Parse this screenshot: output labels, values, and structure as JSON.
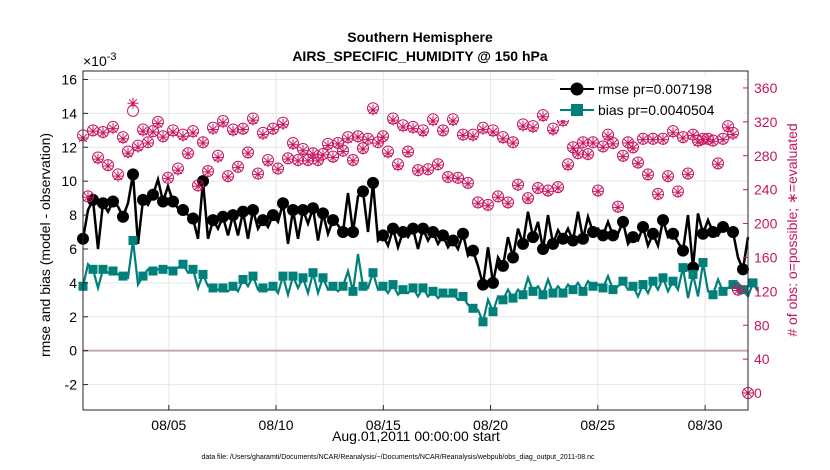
{
  "chart_data": {
    "type": "line",
    "title": [
      "Southern Hemisphere",
      "AIRS_SPECIFIC_HUMIDITY @ 150 hPa"
    ],
    "ylabel": "rmse and bias (model - observation)",
    "y2label": "# of obs: o=possible; ∗=evaluated",
    "xlabel": "Aug.01,2011 00:00:00 start",
    "y_exponent_label": "×10",
    "y_exponent_power": "-3",
    "footer": "data file: /Users/gharamti/Documents/NCAR/Reanalysis/~/Documents/NCAR/Reanalysis/webpub/obs_diag_output_2011-08.nc",
    "xlim": [
      1,
      32
    ],
    "ylim": [
      -3.5,
      16.5
    ],
    "y2lim": [
      -20,
      380
    ],
    "x_ticks": [
      5,
      10,
      15,
      20,
      25,
      30
    ],
    "x_tick_labels": [
      "08/05",
      "08/10",
      "08/15",
      "08/20",
      "08/25",
      "08/30"
    ],
    "y_ticks": [
      -2,
      0,
      2,
      4,
      6,
      8,
      10,
      12,
      14,
      16
    ],
    "y_tick_labels": [
      "-2",
      "0",
      "2",
      "4",
      "6",
      "8",
      "10",
      "12",
      "14",
      "16"
    ],
    "y2_ticks": [
      0,
      40,
      80,
      120,
      160,
      200,
      240,
      280,
      320,
      360
    ],
    "y2_tick_labels": [
      "0",
      "40",
      "80",
      "120",
      "160",
      "200",
      "240",
      "280",
      "320",
      "360"
    ],
    "legend_position": "top-right",
    "grid": true,
    "colors": {
      "rmse": "#000000",
      "bias": "#00807a",
      "obs": "#c8155f",
      "zero_line": "#c8a8b0",
      "grid": "#e6e6e6"
    },
    "series": [
      {
        "name": "rmse pr=0.007198",
        "values": [
          6.6,
          8.3,
          8.9,
          6.0,
          8.7,
          8.2,
          8.8,
          8.5,
          7.9,
          8.7,
          10.4,
          6.3,
          8.9,
          8.6,
          9.2,
          10.1,
          8.8,
          9.7,
          8.8,
          8.4,
          8.3,
          8.0,
          7.8,
          6.6,
          10.0,
          6.6,
          7.7,
          7.2,
          7.9,
          6.8,
          8.0,
          6.8,
          8.2,
          6.6,
          8.3,
          7.2,
          7.7,
          7.3,
          8.0,
          7.6,
          8.7,
          6.3,
          8.3,
          6.6,
          8.3,
          7.5,
          8.4,
          6.5,
          8.1,
          6.9,
          7.7,
          7.4,
          7.0,
          9.3,
          7.0,
          9.1,
          9.4,
          7.0,
          9.9,
          6.5,
          6.8,
          6.2,
          7.2,
          6.1,
          7.0,
          6.7,
          7.2,
          6.0,
          7.2,
          6.5,
          7.0,
          6.3,
          6.8,
          6.1,
          6.5,
          6.0,
          6.9,
          5.6,
          5.9,
          5.0,
          3.9,
          6.1,
          4.0,
          5.5,
          5.0,
          6.7,
          5.5,
          7.2,
          6.3,
          8.2,
          6.7,
          7.6,
          6.0,
          8.0,
          6.3,
          7.1,
          6.6,
          7.2,
          6.5,
          8.2,
          6.6,
          7.9,
          7.0,
          7.2,
          6.8,
          7.6,
          6.8,
          6.9,
          7.6,
          6.3,
          6.7,
          6.5,
          7.3,
          6.2,
          6.9,
          6.2,
          7.7,
          6.7,
          6.9,
          6.4,
          5.9,
          8.0,
          4.9,
          8.1,
          6.9,
          7.7,
          7.0,
          6.8,
          7.3,
          7.1,
          7.0,
          5.5,
          4.8,
          6.7
        ],
        "marker_every": 2
      },
      {
        "name": "bias pr=0.0040504",
        "values": [
          3.8,
          5.1,
          4.8,
          3.7,
          4.8,
          4.6,
          4.7,
          4.5,
          4.4,
          4.3,
          6.5,
          3.9,
          4.4,
          4.8,
          4.7,
          4.8,
          4.8,
          4.9,
          4.7,
          4.9,
          5.1,
          4.6,
          4.8,
          3.7,
          4.5,
          3.8,
          3.7,
          3.6,
          3.7,
          3.5,
          3.8,
          3.5,
          4.2,
          3.8,
          4.4,
          3.6,
          3.7,
          3.6,
          3.8,
          3.4,
          4.4,
          3.3,
          4.4,
          3.7,
          4.3,
          3.4,
          4.6,
          3.4,
          4.3,
          3.6,
          3.8,
          3.5,
          3.8,
          4.7,
          3.5,
          5.7,
          3.8,
          3.7,
          4.6,
          3.6,
          3.8,
          3.4,
          3.9,
          3.3,
          3.6,
          3.4,
          3.7,
          3.2,
          3.7,
          3.2,
          3.5,
          3.1,
          3.4,
          3.2,
          3.4,
          3.0,
          3.2,
          2.7,
          2.5,
          2.4,
          1.7,
          3.0,
          2.3,
          3.2,
          3.0,
          3.6,
          3.1,
          3.6,
          3.3,
          4.3,
          3.5,
          3.8,
          3.3,
          4.2,
          3.4,
          3.8,
          3.4,
          3.9,
          3.6,
          4.0,
          3.5,
          4.1,
          3.8,
          3.9,
          3.7,
          4.4,
          3.6,
          3.8,
          4.1,
          3.6,
          3.8,
          3.2,
          3.9,
          3.4,
          4.1,
          3.6,
          4.3,
          3.5,
          4.1,
          3.6,
          4.9,
          3.1,
          4.5,
          3.2,
          5.2,
          3.5,
          3.3,
          4.2,
          3.5,
          3.7,
          3.9,
          4.0,
          3.6,
          3.2,
          4.0,
          3.5
        ],
        "marker_every": 2
      }
    ],
    "obs_possible": [
      304,
      232,
      310,
      278,
      308,
      269,
      314,
      258,
      302,
      285,
      333,
      292,
      311,
      296,
      309,
      320,
      303,
      254,
      310,
      265,
      305,
      283,
      309,
      245,
      296,
      262,
      313,
      280,
      321,
      256,
      311,
      267,
      312,
      284,
      324,
      259,
      307,
      275,
      312,
      265,
      319,
      277,
      295,
      275,
      288,
      275,
      283,
      275,
      282,
      294,
      279,
      295,
      286,
      302,
      275,
      303,
      289,
      300,
      336,
      296,
      303,
      285,
      324,
      270,
      316,
      285,
      314,
      263,
      310,
      264,
      323,
      270,
      310,
      255,
      323,
      254,
      305,
      248,
      305,
      225,
      313,
      222,
      310,
      232,
      302,
      225,
      296,
      246,
      317,
      230,
      315,
      242,
      328,
      239,
      312,
      243,
      322,
      270,
      290,
      283,
      296,
      282,
      296,
      239,
      291,
      305,
      295,
      220,
      280,
      296,
      290,
      272,
      300,
      258,
      300,
      235,
      300,
      256,
      309,
      238,
      302,
      259,
      305,
      298,
      300,
      300,
      298,
      271,
      300,
      315,
      307,
      122
    ],
    "obs_evaluated": [
      301,
      231,
      309,
      276,
      307,
      268,
      312,
      256,
      300,
      283,
      342,
      290,
      309,
      295,
      308,
      318,
      302,
      253,
      308,
      263,
      303,
      282,
      307,
      244,
      295,
      261,
      311,
      278,
      319,
      255,
      309,
      266,
      311,
      283,
      322,
      258,
      305,
      273,
      311,
      264,
      317,
      276,
      293,
      274,
      286,
      274,
      282,
      274,
      281,
      292,
      278,
      294,
      285,
      300,
      274,
      302,
      288,
      299,
      334,
      295,
      302,
      283,
      322,
      268,
      314,
      284,
      312,
      262,
      308,
      263,
      321,
      269,
      309,
      254,
      321,
      253,
      304,
      247,
      303,
      224,
      311,
      221,
      308,
      231,
      300,
      224,
      295,
      245,
      315,
      229,
      313,
      241,
      326,
      238,
      310,
      242,
      320,
      268,
      289,
      282,
      295,
      281,
      295,
      238,
      290,
      303,
      294,
      219,
      279,
      295,
      289,
      271,
      299,
      257,
      299,
      234,
      299,
      255,
      307,
      237,
      301,
      258,
      304,
      296,
      299,
      299,
      297,
      270,
      299,
      313,
      305,
      121
    ],
    "obs_zero_point": {
      "x": 32,
      "y": 0
    }
  }
}
